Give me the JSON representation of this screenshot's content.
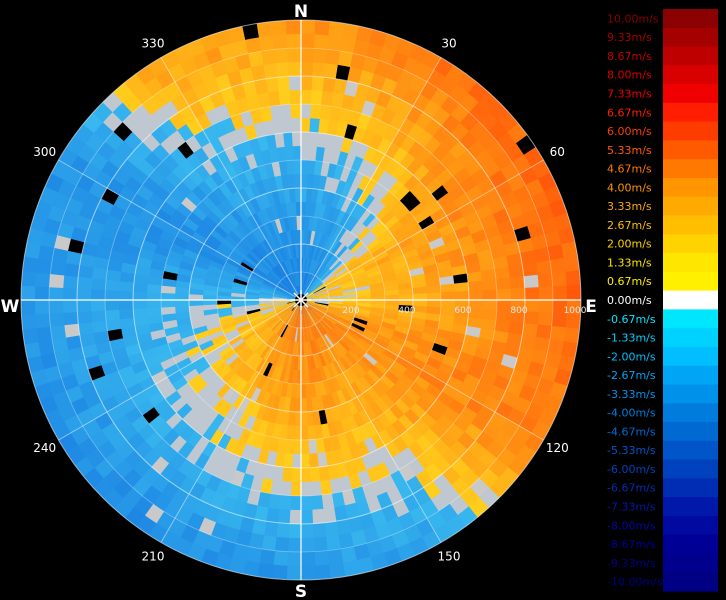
{
  "chart_data": {
    "type": "heatmap",
    "subtype": "polar-ppi-radial-velocity",
    "title": "",
    "unit": "m/s",
    "cardinal_labels": {
      "north": "N",
      "east": "E",
      "south": "S",
      "west": "W"
    },
    "azimuth_tick_labels": [
      {
        "az": 30,
        "label": "30"
      },
      {
        "az": 60,
        "label": "60"
      },
      {
        "az": 120,
        "label": "120"
      },
      {
        "az": 150,
        "label": "150"
      },
      {
        "az": 210,
        "label": "210"
      },
      {
        "az": 240,
        "label": "240"
      },
      {
        "az": 300,
        "label": "300"
      },
      {
        "az": 330,
        "label": "330"
      }
    ],
    "range_ring_labels": [
      {
        "range": 200,
        "label": "200"
      },
      {
        "range": 400,
        "label": "400"
      },
      {
        "range": 600,
        "label": "600"
      },
      {
        "range": 800,
        "label": "800"
      },
      {
        "range": 1000,
        "label": "1000"
      }
    ],
    "range_max": 1000,
    "range_rings": [
      200,
      400,
      600,
      800,
      1000
    ],
    "inner_rings": [
      100,
      300,
      500,
      700,
      900
    ],
    "grid": true,
    "radial_lines_azimuths": [
      0,
      30,
      60,
      90,
      120,
      150,
      180,
      210,
      240,
      270,
      300,
      330
    ],
    "approx_velocity_by_azimuth": [
      {
        "az": 0,
        "near": -4.0,
        "far": 3.0
      },
      {
        "az": 30,
        "near": -3.3,
        "far": 4.7
      },
      {
        "az": 60,
        "near": 0.7,
        "far": 5.3
      },
      {
        "az": 90,
        "near": 0.0,
        "far": 5.3
      },
      {
        "az": 120,
        "near": 3.3,
        "far": 4.0
      },
      {
        "az": 150,
        "near": 4.0,
        "far": -2.0
      },
      {
        "az": 180,
        "near": 4.7,
        "far": -2.7
      },
      {
        "az": 210,
        "near": 3.3,
        "far": -3.3
      },
      {
        "az": 240,
        "near": 2.0,
        "far": -3.3
      },
      {
        "az": 270,
        "near": 0.0,
        "far": -2.7
      },
      {
        "az": 300,
        "near": -3.3,
        "far": -2.7
      },
      {
        "az": 330,
        "near": -4.0,
        "far": 2.7
      }
    ],
    "colorbar": {
      "labels": [
        "10.00m/s",
        "9.33m/s",
        "8.67m/s",
        "8.00m/s",
        "7.33m/s",
        "6.67m/s",
        "6.00m/s",
        "5.33m/s",
        "4.67m/s",
        "4.00m/s",
        "3.33m/s",
        "2.67m/s",
        "2.00m/s",
        "1.33m/s",
        "0.67m/s",
        "0.00m/s",
        "-0.67m/s",
        "-1.33m/s",
        "-2.00m/s",
        "-2.67m/s",
        "-3.33m/s",
        "-4.00m/s",
        "-4.67m/s",
        "-5.33m/s",
        "-6.00m/s",
        "-6.67m/s",
        "-7.33m/s",
        "-8.00m/s",
        "-8.67m/s",
        "-9.33m/s",
        "-10.00m/s"
      ],
      "colors": [
        "#8b0000",
        "#a50000",
        "#bf0000",
        "#d80000",
        "#f00000",
        "#ff1e00",
        "#ff3c00",
        "#ff5a00",
        "#ff7800",
        "#ff9600",
        "#ffaa00",
        "#ffbe00",
        "#ffd200",
        "#ffe600",
        "#fff000",
        "#ffffff",
        "#00e6ff",
        "#00d2ff",
        "#00beff",
        "#00a5f5",
        "#0091ea",
        "#007ddc",
        "#0069d2",
        "#0055c8",
        "#0041be",
        "#002db4",
        "#0019aa",
        "#000aa0",
        "#000096",
        "#00008c",
        "#000082"
      ],
      "label_colors": [
        "#8b0000",
        "#a50000",
        "#bf0000",
        "#d80000",
        "#f00000",
        "#ff1e00",
        "#ff3c00",
        "#ff5a00",
        "#ff7800",
        "#ff9600",
        "#ffaa00",
        "#ffbe00",
        "#ffd200",
        "#ffe600",
        "#fff000",
        "#ffffff",
        "#00e6ff",
        "#00d2ff",
        "#00beff",
        "#00a5f5",
        "#0091ea",
        "#007ddc",
        "#0069d2",
        "#0055c8",
        "#0041be",
        "#002db4",
        "#0019aa",
        "#000aa0",
        "#000096",
        "#00008c",
        "#000082"
      ]
    }
  }
}
